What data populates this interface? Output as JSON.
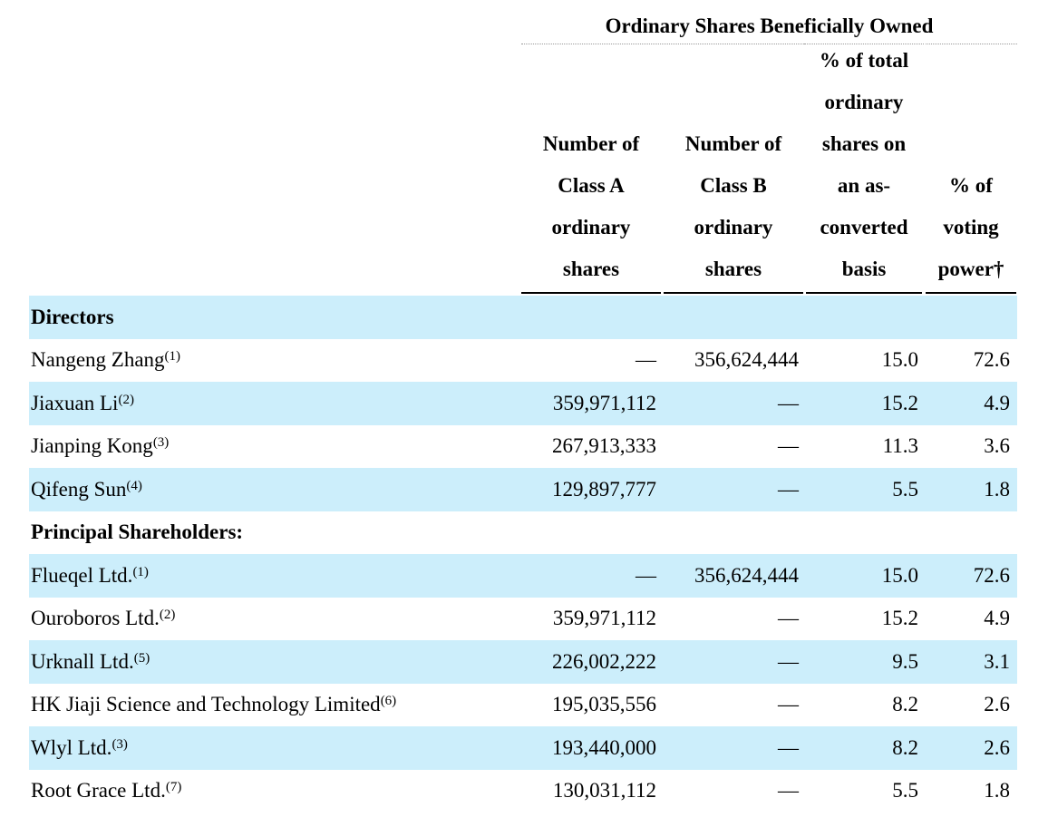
{
  "table_title": "Ordinary Shares Beneficially Owned",
  "columns": [
    {
      "lines": [
        "Number of",
        "Class A",
        "ordinary",
        "shares"
      ]
    },
    {
      "lines": [
        "Number of",
        "Class B",
        "ordinary",
        "shares"
      ]
    },
    {
      "lines": [
        "% of total",
        "ordinary",
        "shares on",
        "an as-",
        "converted",
        "basis"
      ]
    },
    {
      "lines": [
        "% of",
        "voting",
        "power†"
      ]
    }
  ],
  "sections": {
    "directors": "Directors",
    "principal": "Principal Shareholders:"
  },
  "rows": [
    {
      "name": "Nangeng Zhang",
      "note": "(1)",
      "class_a": "—",
      "class_b": "356,624,444",
      "pct_total": "15.0",
      "pct_voting": "72.6"
    },
    {
      "name": "Jiaxuan Li",
      "note": "(2)",
      "class_a": "359,971,112",
      "class_b": "—",
      "pct_total": "15.2",
      "pct_voting": "4.9"
    },
    {
      "name": "Jianping Kong",
      "note": "(3)",
      "class_a": "267,913,333",
      "class_b": "—",
      "pct_total": "11.3",
      "pct_voting": "3.6"
    },
    {
      "name": "Qifeng Sun",
      "note": "(4)",
      "class_a": "129,897,777",
      "class_b": "—",
      "pct_total": "5.5",
      "pct_voting": "1.8"
    },
    {
      "name": "Flueqel Ltd.",
      "note": "(1)",
      "class_a": "—",
      "class_b": "356,624,444",
      "pct_total": "15.0",
      "pct_voting": "72.6"
    },
    {
      "name": "Ouroboros Ltd.",
      "note": "(2)",
      "class_a": "359,971,112",
      "class_b": "—",
      "pct_total": "15.2",
      "pct_voting": "4.9"
    },
    {
      "name": "Urknall Ltd.",
      "note": "(5)",
      "class_a": "226,002,222",
      "class_b": "—",
      "pct_total": "9.5",
      "pct_voting": "3.1"
    },
    {
      "name": "HK Jiaji Science and Technology Limited",
      "note": "(6)",
      "class_a": "195,035,556",
      "class_b": "—",
      "pct_total": "8.2",
      "pct_voting": "2.6"
    },
    {
      "name": "Wlyl Ltd.",
      "note": "(3)",
      "class_a": "193,440,000",
      "class_b": "—",
      "pct_total": "8.2",
      "pct_voting": "2.6"
    },
    {
      "name": "Root Grace Ltd.",
      "note": "(7)",
      "class_a": "130,031,112",
      "class_b": "—",
      "pct_total": "5.5",
      "pct_voting": "1.8"
    }
  ],
  "colors": {
    "row_shade": "#cceefb"
  }
}
